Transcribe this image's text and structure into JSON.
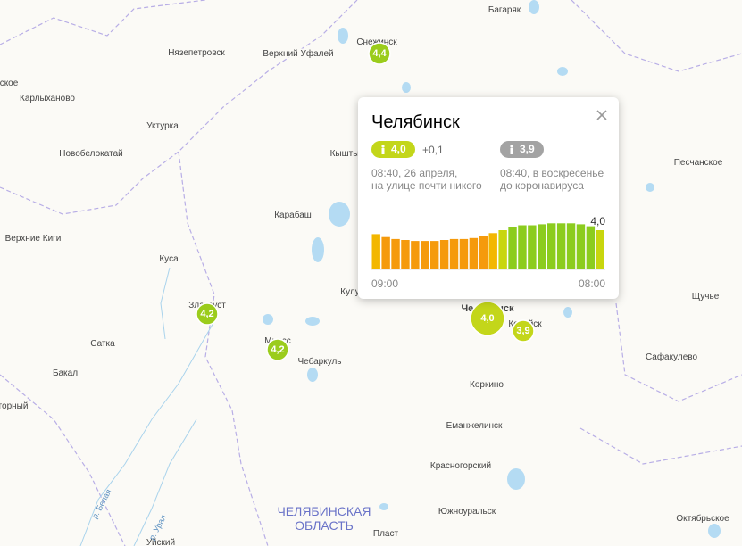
{
  "map": {
    "places": [
      "Багаряк",
      "Снежинск",
      "Нязепетровск",
      "Верхний Уфалей",
      "ское",
      "Карлыханово",
      "Уктурка",
      "Новобелокатай",
      "Кышты",
      "Песчанское",
      "Карабаш",
      "Верхние Киги",
      "Куса",
      "Кулу",
      "Щучье",
      "Челябинск",
      "Копейск",
      "Златоуст",
      "Миасс",
      "Сатка",
      "Чебаркуль",
      "Сафакулево",
      "Бакал",
      "горный",
      "Коркино",
      "Еманжелинск",
      "Красногорский",
      "Южноуральск",
      "Октябрьское",
      "Пласт",
      "Уйский"
    ],
    "region_label": [
      "ЧЕЛЯБИНСКАЯ",
      "ОБЛАСТЬ"
    ],
    "rivers": [
      "р. Белая",
      "р. Урал"
    ],
    "markers": [
      "4,4",
      "4,2",
      "4,2",
      "4,0",
      "3,9"
    ]
  },
  "popup": {
    "title": "Челябинск",
    "current": {
      "index": "4,0",
      "delta": "+0,1",
      "time": "08:40, 26 апреля,",
      "note": "на улице почти никого"
    },
    "previous": {
      "index": "3,9",
      "time": "08:40, в воскресенье",
      "note": "до коронавируса"
    },
    "chart": {
      "type": "bar",
      "values": [
        3.6,
        3.3,
        3.1,
        3.0,
        2.9,
        2.9,
        2.9,
        3.0,
        3.1,
        3.1,
        3.2,
        3.4,
        3.7,
        4.0,
        4.3,
        4.5,
        4.5,
        4.6,
        4.7,
        4.7,
        4.7,
        4.6,
        4.4,
        4.0
      ],
      "value_labels": [
        null,
        null,
        null,
        null,
        null,
        null,
        null,
        null,
        null,
        null,
        null,
        null,
        null,
        null,
        null,
        null,
        null,
        null,
        null,
        null,
        null,
        null,
        null,
        "4,0"
      ],
      "start_label": "09:00",
      "end_label": "08:00"
    }
  }
}
